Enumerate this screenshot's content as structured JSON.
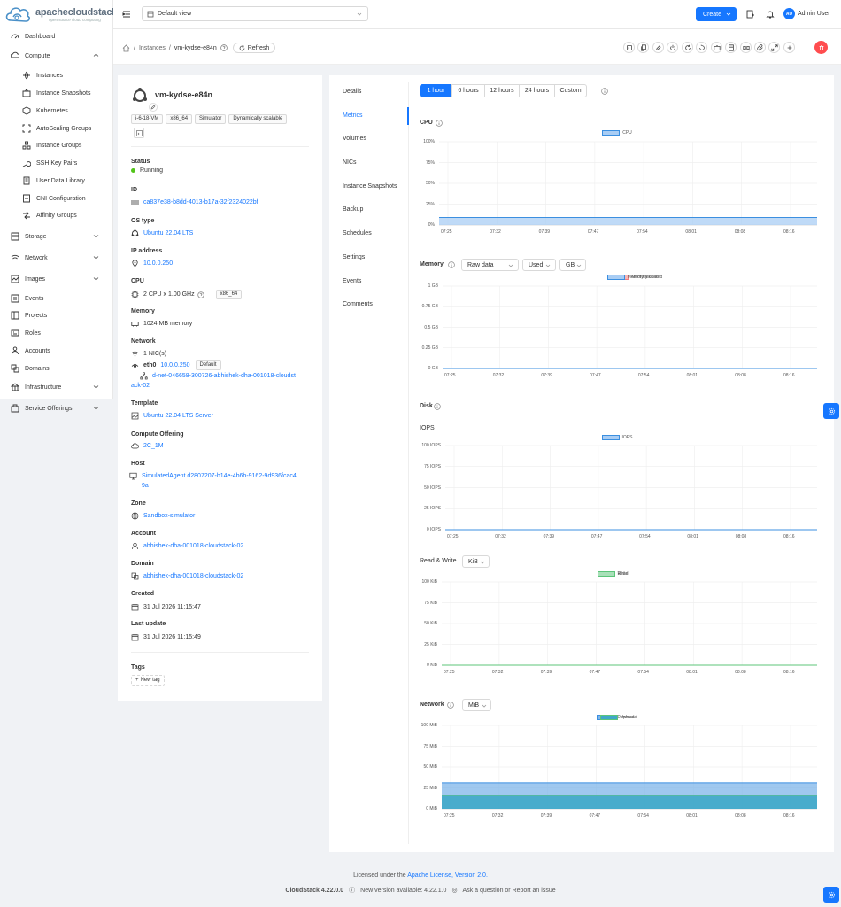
{
  "brand": {
    "name": "apachecloudstack",
    "tagline": "open source cloud computing"
  },
  "sidebar": {
    "items": [
      {
        "label": "Dashboard"
      },
      {
        "label": "Compute"
      },
      {
        "label": "Instances"
      },
      {
        "label": "Instance Snapshots"
      },
      {
        "label": "Kubernetes"
      },
      {
        "label": "AutoScaling Groups"
      },
      {
        "label": "Instance Groups"
      },
      {
        "label": "SSH Key Pairs"
      },
      {
        "label": "User Data Library"
      },
      {
        "label": "CNI Configuration"
      },
      {
        "label": "Affinity Groups"
      },
      {
        "label": "Storage"
      },
      {
        "label": "Network"
      },
      {
        "label": "Images"
      },
      {
        "label": "Events"
      },
      {
        "label": "Projects"
      },
      {
        "label": "Roles"
      },
      {
        "label": "Accounts"
      },
      {
        "label": "Domains"
      },
      {
        "label": "Infrastructure"
      },
      {
        "label": "Service Offerings"
      }
    ]
  },
  "topbar": {
    "view": "Default view",
    "create": "Create",
    "user_initials": "AU",
    "user_name": "Admin User"
  },
  "breadcrumb": {
    "section": "Instances",
    "current": "vm-kydse-e84n",
    "refresh": "Refresh"
  },
  "instance": {
    "name": "vm-kydse-e84n",
    "tags": [
      "i-6-18-VM",
      "x86_64",
      "Simulator",
      "Dynamically scalable"
    ],
    "status_label": "Status",
    "status": "Running",
    "id_label": "ID",
    "id": "ca837e38-b8dd-4013-b17a-32f2324022bf",
    "os_label": "OS type",
    "os": "Ubuntu 22.04 LTS",
    "ip_label": "IP address",
    "ip": "10.0.0.250",
    "cpu_label": "CPU",
    "cpu": "2 CPU x 1.00 GHz",
    "cpu_arch": "x86_64",
    "memory_label": "Memory",
    "memory": "1024 MB memory",
    "network_label": "Network",
    "nics": "1 NIC(s)",
    "nic_name": "eth0",
    "nic_ip": "10.0.0.250",
    "nic_default": "Default",
    "nic_net_1": "d-net-046658-300726-abhishek-dha-001018-cloudst",
    "nic_net_2": "ack-02",
    "template_label": "Template",
    "template": "Ubuntu 22.04 LTS Server",
    "offering_label": "Compute Offering",
    "offering": "2C_1M",
    "host_label": "Host",
    "host_1": "SimulatedAgent.d2807207-b14e-4b6b-9162-9d936fcac4",
    "host_2": "9a",
    "zone_label": "Zone",
    "zone": "Sandbox-simulator",
    "account_label": "Account",
    "account": "abhishek-dha-001018-cloudstack-02",
    "domain_label": "Domain",
    "domain": "abhishek-dha-001018-cloudstack-02",
    "created_label": "Created",
    "created": "31 Jul 2026 11:15:47",
    "updated_label": "Last update",
    "updated": "31 Jul 2026 11:15:49",
    "tags_label": "Tags",
    "new_tag": "New tag"
  },
  "tabs": [
    "Details",
    "Metrics",
    "Volumes",
    "NICs",
    "Instance Snapshots",
    "Backup",
    "Schedules",
    "Settings",
    "Events",
    "Comments"
  ],
  "active_tab": "Metrics",
  "ranges": [
    "1 hour",
    "6 hours",
    "12 hours",
    "24 hours",
    "Custom"
  ],
  "active_range": "1 hour",
  "times": [
    "07:25",
    "07:32",
    "07:39",
    "07:47",
    "07:54",
    "08:01",
    "08:08",
    "08:16"
  ],
  "metrics": {
    "cpu_title": "CPU",
    "memory_title": "Memory",
    "mem_sel1": "Raw data",
    "mem_sel2": "Used",
    "mem_sel3": "GB",
    "disk_title": "Disk",
    "iops_title": "IOPS",
    "rw_title": "Read & Write",
    "rw_sel": "KiB",
    "network_title": "Network",
    "net_sel": "MiB"
  },
  "colors": {
    "accent": "#1677ff",
    "delete": "#ff4d4f",
    "running": "#52c41a",
    "series_blue": "#3b8fe0",
    "series_red": "#f08080",
    "series_green": "#5cc47a",
    "series_teal": "#3fa8c8"
  },
  "chart_data": [
    {
      "type": "area",
      "title": "CPU",
      "x": [
        "07:25",
        "07:32",
        "07:39",
        "07:47",
        "07:54",
        "08:01",
        "08:08",
        "08:16"
      ],
      "yticks": [
        "100%",
        "75%",
        "50%",
        "25%",
        "0%"
      ],
      "ylim": [
        0,
        100
      ],
      "series": [
        {
          "name": "CPU",
          "values": [
            9,
            9,
            9,
            9,
            9,
            9,
            9,
            9
          ]
        }
      ]
    },
    {
      "type": "line",
      "title": "Memory",
      "x": [
        "07:25",
        "07:32",
        "07:39",
        "07:47",
        "07:54",
        "08:01",
        "08:08",
        "08:16"
      ],
      "yticks": [
        "1 GB",
        "0.75 GB",
        "0.5 GB",
        "0.25 GB",
        "0 GB"
      ],
      "ylim": [
        0,
        1
      ],
      "series": [
        {
          "name": "Memory used",
          "values": [
            0,
            0,
            0,
            0,
            0,
            0,
            0,
            0
          ]
        },
        {
          "name": "Memory allocated",
          "values": [
            0,
            0,
            0,
            0,
            0,
            0,
            0,
            0
          ]
        }
      ]
    },
    {
      "type": "line",
      "title": "IOPS",
      "x": [
        "07:25",
        "07:32",
        "07:39",
        "07:47",
        "07:54",
        "08:01",
        "08:08",
        "08:16"
      ],
      "yticks": [
        "100 IOPS",
        "75 IOPS",
        "50 IOPS",
        "25 IOPS",
        "0 IOPS"
      ],
      "ylim": [
        0,
        100
      ],
      "series": [
        {
          "name": "IOPS",
          "values": [
            0,
            0,
            0,
            0,
            0,
            0,
            0,
            0
          ]
        }
      ]
    },
    {
      "type": "line",
      "title": "Read & Write",
      "x": [
        "07:25",
        "07:32",
        "07:39",
        "07:47",
        "07:54",
        "08:01",
        "08:08",
        "08:16"
      ],
      "yticks": [
        "100 KiB",
        "75 KiB",
        "50 KiB",
        "25 KiB",
        "0 KiB"
      ],
      "ylim": [
        0,
        100
      ],
      "series": [
        {
          "name": "Read",
          "values": [
            0,
            0,
            0,
            0,
            0,
            0,
            0,
            0
          ]
        },
        {
          "name": "Write",
          "values": [
            0,
            0,
            0,
            0,
            0,
            0,
            0,
            0
          ]
        }
      ]
    },
    {
      "type": "area",
      "title": "Network",
      "x": [
        "07:25",
        "07:32",
        "07:39",
        "07:47",
        "07:54",
        "08:01",
        "08:08",
        "08:16"
      ],
      "yticks": [
        "100 MiB",
        "75 MiB",
        "50 MiB",
        "25 MiB",
        "0 MiB"
      ],
      "ylim": [
        0,
        100
      ],
      "series": [
        {
          "name": "Download",
          "values": [
            31,
            31,
            31,
            31,
            31,
            31,
            31,
            31
          ]
        },
        {
          "name": "Upload",
          "values": [
            16,
            16,
            16,
            16,
            16,
            16,
            16,
            16
          ]
        }
      ]
    }
  ],
  "footer": {
    "license_prefix": "Licensed under the",
    "license_link": "Apache License, Version 2.0.",
    "version": "CloudStack 4.22.0.0",
    "new_version": "New version available: 4.22.1.0",
    "issue": "Ask a question or Report an issue"
  }
}
